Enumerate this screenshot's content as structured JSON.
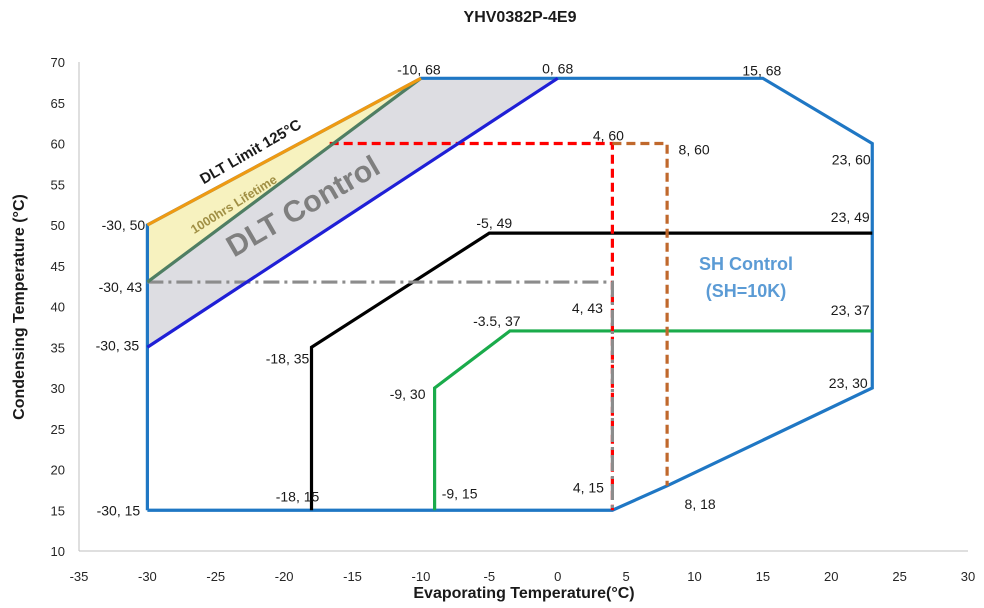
{
  "chart_data": {
    "type": "line",
    "title": "YHV0382P-4E9",
    "xlabel": "Evaporating Temperature(°C)",
    "ylabel": "Condensing Temperature (°C)",
    "xlim": [
      -35,
      30
    ],
    "ylim": [
      10,
      70
    ],
    "xticks": [
      -35,
      -30,
      -25,
      -20,
      -15,
      -10,
      -5,
      0,
      5,
      10,
      15,
      20,
      25,
      30
    ],
    "yticks": [
      10,
      15,
      20,
      25,
      30,
      35,
      40,
      45,
      50,
      55,
      60,
      65,
      70
    ],
    "grid": false,
    "series": [
      {
        "name": "",
        "color": "#1f77c4",
        "style": "solid",
        "points": [
          [
            -30,
            15
          ],
          [
            4,
            15
          ],
          [
            8,
            18
          ],
          [
            23,
            30
          ],
          [
            23,
            60
          ],
          [
            15,
            68
          ],
          [
            0,
            68
          ],
          [
            -10,
            68
          ],
          [
            -30,
            50
          ],
          [
            -30,
            15
          ]
        ]
      },
      {
        "name": "",
        "color": "#000000",
        "style": "solid",
        "points": [
          [
            -18,
            15
          ],
          [
            -18,
            35
          ],
          [
            -5,
            49
          ],
          [
            23,
            49
          ]
        ]
      },
      {
        "name": "",
        "color": "#1aab4b",
        "style": "solid",
        "points": [
          [
            -9,
            15
          ],
          [
            -9,
            30
          ],
          [
            -3.5,
            37
          ],
          [
            23,
            37
          ]
        ]
      },
      {
        "name": "",
        "color": "#ff0000",
        "style": "dashed",
        "points": [
          [
            -16.67,
            60
          ],
          [
            4,
            60
          ],
          [
            4,
            15
          ]
        ]
      },
      {
        "name": "",
        "color": "#c0682c",
        "style": "dashed",
        "points": [
          [
            4,
            60
          ],
          [
            8,
            60
          ],
          [
            8,
            18
          ]
        ]
      },
      {
        "name": "",
        "color": "#8c8c8c",
        "style": "dashdot",
        "points": [
          [
            -30,
            43
          ],
          [
            4,
            43
          ],
          [
            4,
            15
          ]
        ]
      },
      {
        "name": "",
        "color": "#1f1fd6",
        "style": "solid",
        "points": [
          [
            -30,
            35
          ],
          [
            0,
            68
          ]
        ]
      },
      {
        "name": "",
        "color": "#4f7e63",
        "style": "solid",
        "points": [
          [
            -30,
            43
          ],
          [
            -10,
            68
          ]
        ]
      },
      {
        "name": "",
        "color": "#ef9a12",
        "style": "solid",
        "points": [
          [
            -30,
            50
          ],
          [
            -10,
            68
          ]
        ]
      }
    ],
    "regions": [
      {
        "name": "DLT Control",
        "fill": "#dddde2",
        "points": [
          [
            -30,
            35
          ],
          [
            -30,
            43
          ],
          [
            -10,
            68
          ],
          [
            0,
            68
          ]
        ]
      },
      {
        "name": "1000hrs Lifetime",
        "fill": "#f7f2bf",
        "points": [
          [
            -30,
            43
          ],
          [
            -30,
            50
          ],
          [
            -10,
            68
          ]
        ]
      }
    ],
    "point_labels": [
      {
        "text": "-10, 68",
        "x": -10,
        "y": 68
      },
      {
        "text": "0, 68",
        "x": 0,
        "y": 68
      },
      {
        "text": "15, 68",
        "x": 15,
        "y": 68
      },
      {
        "text": "4, 60",
        "x": 4,
        "y": 60
      },
      {
        "text": "8, 60",
        "x": 8,
        "y": 60
      },
      {
        "text": "23, 60",
        "x": 23,
        "y": 60
      },
      {
        "text": "-30, 50",
        "x": -30,
        "y": 50
      },
      {
        "text": "-5, 49",
        "x": -5,
        "y": 49
      },
      {
        "text": "23, 49",
        "x": 23,
        "y": 49
      },
      {
        "text": "-30, 43",
        "x": -30,
        "y": 43
      },
      {
        "text": "4, 43",
        "x": 4,
        "y": 43
      },
      {
        "text": "-3.5, 37",
        "x": -3.5,
        "y": 37
      },
      {
        "text": "23, 37",
        "x": 23,
        "y": 37
      },
      {
        "text": "-30, 35",
        "x": -30,
        "y": 35
      },
      {
        "text": "-18, 35",
        "x": -18,
        "y": 35
      },
      {
        "text": "-9, 30",
        "x": -9,
        "y": 30
      },
      {
        "text": "23, 30",
        "x": 23,
        "y": 30
      },
      {
        "text": "-30, 15",
        "x": -30,
        "y": 15
      },
      {
        "text": "-18, 15",
        "x": -18,
        "y": 15
      },
      {
        "text": "-9, 15",
        "x": -9,
        "y": 15
      },
      {
        "text": "4, 15",
        "x": 4,
        "y": 15
      },
      {
        "text": "8, 18",
        "x": 8,
        "y": 18
      }
    ],
    "annotations": {
      "sh_control_line1": "SH Control",
      "sh_control_line2": "(SH=10K)",
      "dlt_control": "DLT Control",
      "dlt_limit": "DLT Limit 125°C",
      "lifetime": "1000hrs Lifetime"
    }
  }
}
